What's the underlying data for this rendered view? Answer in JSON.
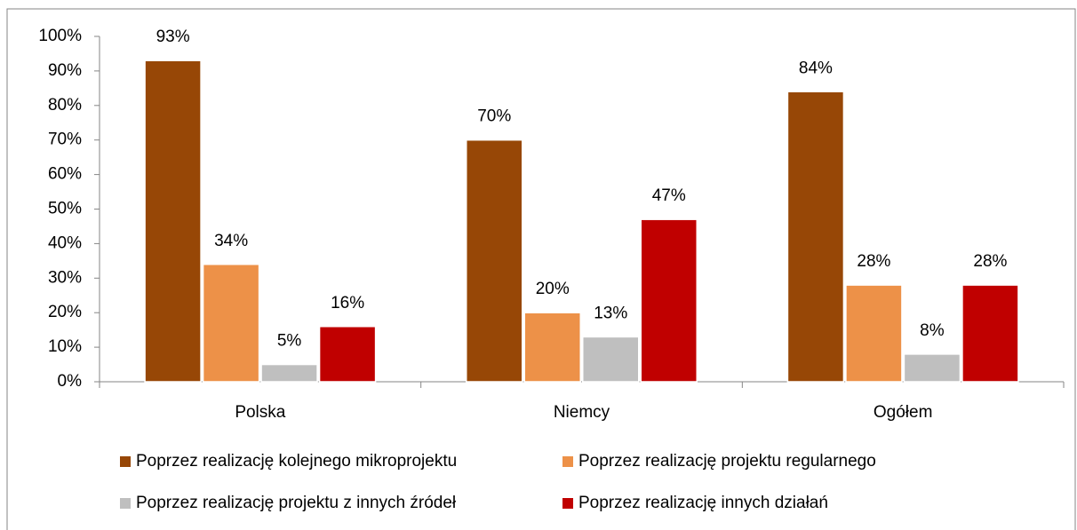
{
  "chart_data": {
    "type": "bar",
    "categories": [
      "Polska",
      "Niemcy",
      "Ogółem"
    ],
    "series": [
      {
        "name": "Poprzez realizację kolejnego mikroprojektu",
        "color": "#974706",
        "values": [
          93,
          70,
          84
        ],
        "value_labels": [
          "93%",
          "70%",
          "84%"
        ]
      },
      {
        "name": "Poprzez realizację projektu regularnego",
        "color": "#ed9148",
        "values": [
          34,
          20,
          28
        ],
        "value_labels": [
          "34%",
          "20%",
          "28%"
        ]
      },
      {
        "name": "Poprzez realizację projektu z innych źródeł",
        "color": "#bfbfbf",
        "values": [
          5,
          13,
          8
        ],
        "value_labels": [
          "5%",
          "13%",
          "8%"
        ]
      },
      {
        "name": "Poprzez realizację innych działań",
        "color": "#c00000",
        "values": [
          16,
          47,
          28
        ],
        "value_labels": [
          "16%",
          "47%",
          "28%"
        ]
      }
    ],
    "ylim": [
      0,
      100
    ],
    "yticks": [
      {
        "value": 0,
        "label": "0%"
      },
      {
        "value": 10,
        "label": "10%"
      },
      {
        "value": 20,
        "label": "20%"
      },
      {
        "value": 30,
        "label": "30%"
      },
      {
        "value": 40,
        "label": "40%"
      },
      {
        "value": 50,
        "label": "50%"
      },
      {
        "value": 60,
        "label": "60%"
      },
      {
        "value": 70,
        "label": "70%"
      },
      {
        "value": 80,
        "label": "80%"
      },
      {
        "value": 90,
        "label": "90%"
      },
      {
        "value": 100,
        "label": "100%"
      }
    ],
    "legend": "bottom"
  }
}
